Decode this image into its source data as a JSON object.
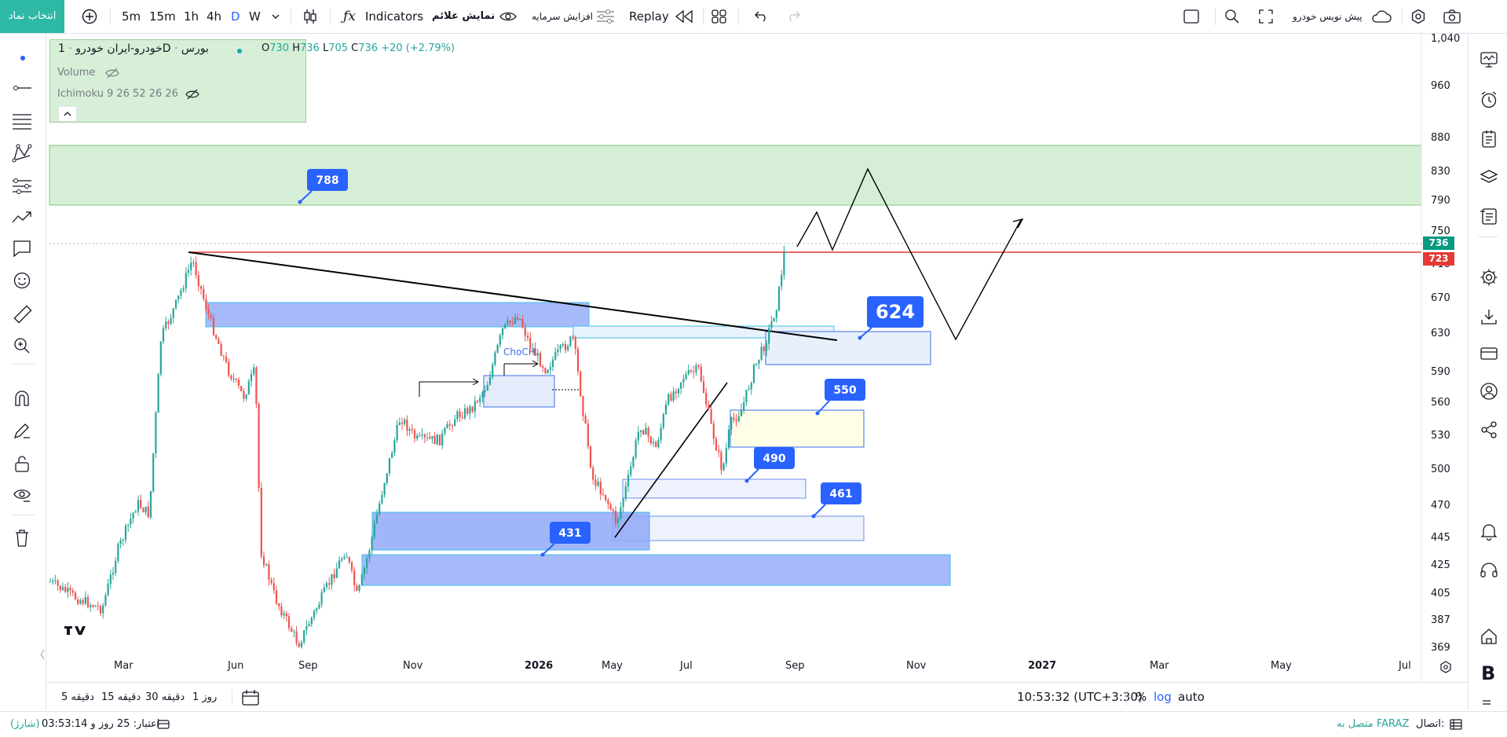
{
  "toolbar": {
    "symbol_button": "انتخاب نماد",
    "intervals": [
      "5m",
      "15m",
      "1h",
      "4h",
      "D",
      "W"
    ],
    "active_interval": "D",
    "indicators": "Indicators",
    "show_signs": "نمایش علائم",
    "capital_increase": "افزایش سرمایه",
    "replay": "Replay",
    "pre_order": "پیش نویس خودرو"
  },
  "legend": {
    "symbol": "خودرو-ایران خودرو",
    "interval": "1D",
    "exchange": "بورس",
    "o_label": "O",
    "o": "730",
    "h_label": "H",
    "h": "736",
    "l_label": "L",
    "l": "705",
    "c_label": "C",
    "c": "736",
    "change": "+20 (+2.79%)",
    "volume": "Volume",
    "ichimoku": "Ichimoku 9 26 52 26 26"
  },
  "price_axis": [
    "1,040",
    "960",
    "880",
    "830",
    "790",
    "750",
    "710",
    "670",
    "630",
    "590",
    "560",
    "530",
    "500",
    "470",
    "445",
    "425",
    "405",
    "387",
    "369"
  ],
  "price_tags": {
    "last": "736",
    "line": "723"
  },
  "time_axis": [
    "Mar",
    "Jun",
    "Sep",
    "Nov",
    "2026",
    "May",
    "Jul",
    "Sep",
    "Nov",
    "2027",
    "Mar",
    "May",
    "Jul"
  ],
  "callouts": [
    "788",
    "624",
    "550",
    "490",
    "461",
    "431"
  ],
  "chart_label": "ChoCH",
  "bottom": {
    "ranges": [
      "5 دقیقه",
      "15 دقیقه",
      "30 دقیقه",
      "1 روز"
    ],
    "clock": "10:53:32 (UTC+3:30)",
    "percent": "%",
    "log": "log",
    "auto": "auto"
  },
  "status": {
    "connection_label": "اتصال:",
    "connection_value": "متصل به FARAZ",
    "credit": "اعتبار: 25 روز و 03:53:14",
    "charge": "(شارژ)"
  },
  "colors": {
    "accent": "#2962ff",
    "teal": "#2eb8a6",
    "up": "#26a69a",
    "down": "#ef5350",
    "zone_green": "#c8e6c9",
    "zone_blue": "#90a8f8",
    "callout": "#2962ff"
  }
}
